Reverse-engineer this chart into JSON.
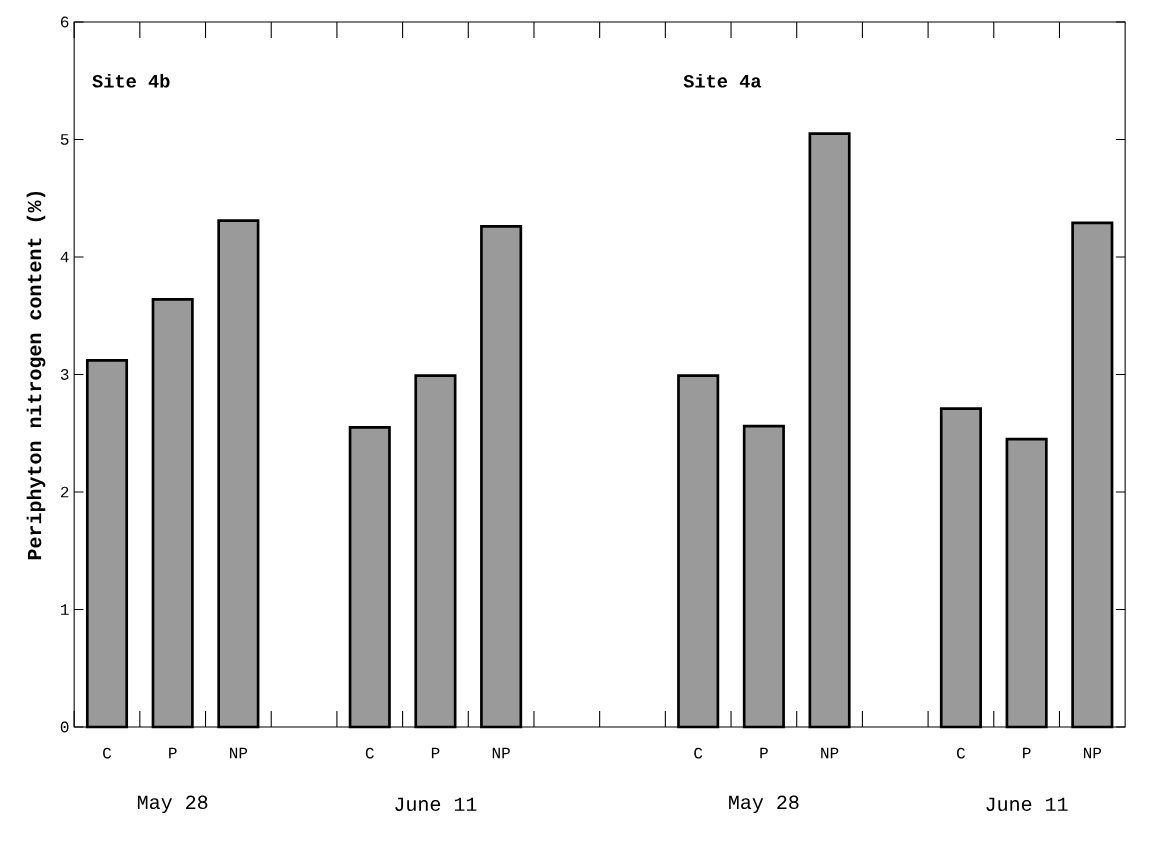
{
  "chart_data": {
    "type": "bar",
    "ylabel": "Periphyton nitrogen content (%)",
    "categories": [
      "C",
      "P",
      "NP",
      null,
      "C",
      "P",
      "NP",
      null,
      null,
      "C",
      "P",
      "NP",
      null,
      "C",
      "P",
      "NP"
    ],
    "values": [
      3.12,
      3.64,
      4.31,
      null,
      2.55,
      2.99,
      4.26,
      null,
      null,
      2.99,
      2.56,
      5.05,
      null,
      2.71,
      2.45,
      4.29
    ],
    "color": "#9a9a9a",
    "ylim": [
      0,
      6
    ],
    "yticks": [
      0,
      1,
      2,
      3,
      4,
      5,
      6
    ],
    "grid": false,
    "annotations": [
      "Site 4b",
      "Site 4a",
      "May 28",
      "June 11",
      "May 28",
      "June 11"
    ]
  }
}
